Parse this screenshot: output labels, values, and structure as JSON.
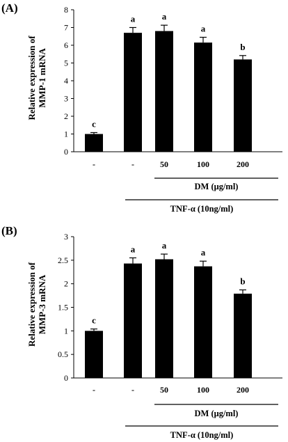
{
  "chart_data": [
    {
      "type": "bar",
      "panel_label": "(A)",
      "ylabel_lines": [
        "Relative expression of",
        "MMP-1 mRNA"
      ],
      "ylim": [
        0,
        8
      ],
      "yticks": [
        0,
        1,
        2,
        3,
        4,
        5,
        6,
        7,
        8
      ],
      "categories": [
        "-",
        "-",
        "50",
        "100",
        "200"
      ],
      "values": [
        1.0,
        6.7,
        6.8,
        6.15,
        5.2
      ],
      "errors": [
        0.08,
        0.3,
        0.33,
        0.3,
        0.22
      ],
      "significance": [
        "c",
        "a",
        "a",
        "a",
        "b"
      ],
      "group_labels": {
        "dm": "DM (μg/ml)",
        "tnf": "TNF-α (10ng/ml)"
      },
      "grid": false,
      "bar_color": "#000000"
    },
    {
      "type": "bar",
      "panel_label": "(B)",
      "ylabel_lines": [
        "Relative expression of",
        "MMP-3 mRNA"
      ],
      "ylim": [
        0,
        3
      ],
      "yticks": [
        0,
        0.5,
        1,
        1.5,
        2,
        2.5,
        3
      ],
      "ytick_labels": [
        "0",
        "0.5",
        "1",
        "1.5",
        "2",
        "2.5",
        "3"
      ],
      "categories": [
        "-",
        "-",
        "50",
        "100",
        "200"
      ],
      "values": [
        1.0,
        2.43,
        2.52,
        2.37,
        1.79
      ],
      "errors": [
        0.04,
        0.12,
        0.11,
        0.11,
        0.08
      ],
      "significance": [
        "c",
        "a",
        "a",
        "a",
        "b"
      ],
      "group_labels": {
        "dm": "DM (μg/ml)",
        "tnf": "TNF-α (10ng/ml)"
      },
      "grid": false,
      "bar_color": "#000000"
    }
  ]
}
